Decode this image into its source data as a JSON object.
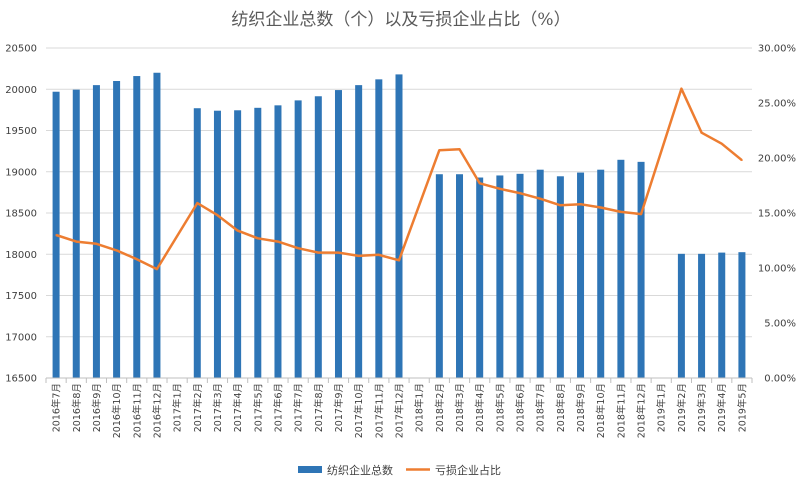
{
  "chart_data": {
    "type": "bar+line",
    "title": "纺织企业总数（个）以及亏损企业占比（%）",
    "categories": [
      "2016年7月",
      "2016年8月",
      "2016年9月",
      "2016年10月",
      "2016年11月",
      "2016年12月",
      "2017年1月",
      "2017年2月",
      "2017年3月",
      "2017年4月",
      "2017年5月",
      "2017年6月",
      "2017年7月",
      "2017年8月",
      "2017年9月",
      "2017年10月",
      "2017年11月",
      "2017年12月",
      "2018年1月",
      "2018年2月",
      "2018年3月",
      "2018年4月",
      "2018年5月",
      "2018年6月",
      "2018年7月",
      "2018年8月",
      "2018年9月",
      "2018年10月",
      "2018年11月",
      "2018年12月",
      "2019年1月",
      "2019年2月",
      "2019年3月",
      "2019年4月",
      "2019年5月"
    ],
    "series": [
      {
        "name": "纺织企业总数",
        "type": "bar",
        "axis": "left",
        "color": "#2E75B6",
        "values": [
          19970,
          19995,
          20050,
          20100,
          20160,
          20200,
          null,
          19770,
          19740,
          19745,
          19775,
          19805,
          19865,
          19915,
          19990,
          20050,
          20120,
          20180,
          null,
          18970,
          18970,
          18930,
          18955,
          18975,
          19025,
          18945,
          18990,
          19025,
          19145,
          19120,
          null,
          18005,
          18005,
          18020,
          18025
        ]
      },
      {
        "name": "亏损企业占比",
        "type": "line",
        "axis": "right",
        "color": "#ED7D31",
        "values": [
          13.0,
          12.4,
          12.2,
          11.6,
          10.8,
          9.9,
          null,
          15.9,
          14.8,
          13.4,
          12.7,
          12.4,
          11.8,
          11.4,
          11.4,
          11.1,
          11.2,
          10.7,
          null,
          20.7,
          20.8,
          17.7,
          17.2,
          16.8,
          16.3,
          15.7,
          15.8,
          15.5,
          15.1,
          14.9,
          null,
          26.3,
          22.3,
          21.3,
          19.8
        ]
      }
    ],
    "left_axis": {
      "min": 16500,
      "max": 20500,
      "step": 500,
      "tick_labels": [
        "16500",
        "17000",
        "17500",
        "18000",
        "18500",
        "19000",
        "19500",
        "20000",
        "20500"
      ]
    },
    "right_axis": {
      "min": 0,
      "max": 30,
      "step": 5,
      "tick_labels": [
        "0.00%",
        "5.00%",
        "10.00%",
        "15.00%",
        "20.00%",
        "25.00%",
        "30.00%"
      ]
    },
    "grid": true,
    "legend_position": "bottom"
  }
}
